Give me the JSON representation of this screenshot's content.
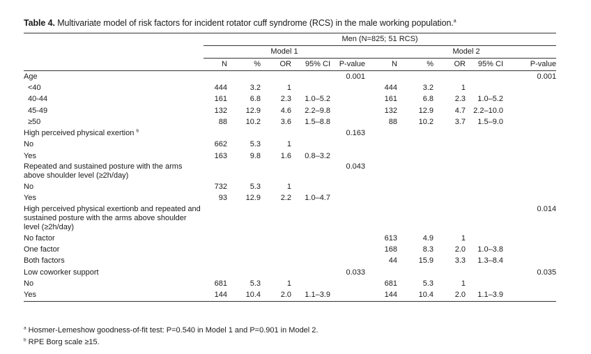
{
  "caption": {
    "label": "Table 4.",
    "text": " Multivariate model of risk factors for incident rotator cuff syndrome (RCS) in the male working population.",
    "marker": "a"
  },
  "header": {
    "group": "Men (N=825; 51 RCS)",
    "model1": "Model 1",
    "model2": "Model 2",
    "columns": [
      "N",
      "%",
      "OR",
      "95% CI",
      "P-value",
      "N",
      "%",
      "OR",
      "95% CI",
      "P-value"
    ]
  },
  "rows": [
    {
      "label": "Age",
      "indent": false,
      "cells": [
        "",
        "",
        "",
        "",
        "0.001",
        "",
        "",
        "",
        "",
        "0.001"
      ]
    },
    {
      "label": "<40",
      "indent": true,
      "cells": [
        "444",
        "3.2",
        "1",
        "",
        "",
        "444",
        "3.2",
        "1",
        "",
        ""
      ]
    },
    {
      "label": "40-44",
      "indent": true,
      "cells": [
        "161",
        "6.8",
        "2.3",
        "1.0–5.2",
        "",
        "161",
        "6.8",
        "2.3",
        "1.0–5.2",
        ""
      ]
    },
    {
      "label": "45-49",
      "indent": true,
      "cells": [
        "132",
        "12.9",
        "4.6",
        "2.2–9.8",
        "",
        "132",
        "12.9",
        "4.7",
        "2.2–10.0",
        ""
      ]
    },
    {
      "label": "≥50",
      "indent": true,
      "cells": [
        "88",
        "10.2",
        "3.6",
        "1.5–8.8",
        "",
        "88",
        "10.2",
        "3.7",
        "1.5–9.0",
        ""
      ]
    },
    {
      "label": "High perceived physical exertion",
      "fn": "b",
      "indent": false,
      "cells": [
        "",
        "",
        "",
        "",
        "0.163",
        "",
        "",
        "",
        "",
        ""
      ]
    },
    {
      "label": "No",
      "indent": false,
      "cells": [
        "662",
        "5.3",
        "1",
        "",
        "",
        "",
        "",
        "",
        "",
        ""
      ]
    },
    {
      "label": "Yes",
      "indent": false,
      "cells": [
        "163",
        "9.8",
        "1.6",
        "0.8–3.2",
        "",
        "",
        "",
        "",
        "",
        ""
      ]
    },
    {
      "label": "Repeated and sustained posture with the arms above shoulder level (≥2h/day)",
      "indent": false,
      "multi": true,
      "cells": [
        "",
        "",
        "",
        "",
        "0.043",
        "",
        "",
        "",
        "",
        ""
      ]
    },
    {
      "label": "No",
      "indent": false,
      "cells": [
        "732",
        "5.3",
        "1",
        "",
        "",
        "",
        "",
        "",
        "",
        ""
      ]
    },
    {
      "label": "Yes",
      "indent": false,
      "cells": [
        "93",
        "12.9",
        "2.2",
        "1.0–4.7",
        "",
        "",
        "",
        "",
        "",
        ""
      ]
    },
    {
      "label": "High perceived physical exertionb and repeated and sustained posture with the arms above shoulder level (≥2h/day)",
      "indent": false,
      "multi": true,
      "cells": [
        "",
        "",
        "",
        "",
        "",
        "",
        "",
        "",
        "",
        "0.014"
      ]
    },
    {
      "label": "No factor",
      "indent": false,
      "cells": [
        "",
        "",
        "",
        "",
        "",
        "613",
        "4.9",
        "1",
        "",
        ""
      ]
    },
    {
      "label": "One factor",
      "indent": false,
      "cells": [
        "",
        "",
        "",
        "",
        "",
        "168",
        "8.3",
        "2.0",
        "1.0–3.8",
        ""
      ]
    },
    {
      "label": "Both factors",
      "indent": false,
      "cells": [
        "",
        "",
        "",
        "",
        "",
        "44",
        "15.9",
        "3.3",
        "1.3–8.4",
        ""
      ]
    },
    {
      "label": "Low coworker support",
      "indent": false,
      "cells": [
        "",
        "",
        "",
        "",
        "0.033",
        "",
        "",
        "",
        "",
        "0.035"
      ]
    },
    {
      "label": "No",
      "indent": false,
      "cells": [
        "681",
        "5.3",
        "1",
        "",
        "",
        "681",
        "5.3",
        "1",
        "",
        ""
      ]
    },
    {
      "label": "Yes",
      "indent": false,
      "cells": [
        "144",
        "10.4",
        "2.0",
        "1.1–3.9",
        "",
        "144",
        "10.4",
        "2.0",
        "1.1–3.9",
        ""
      ]
    }
  ],
  "footnotes": [
    {
      "marker": "a",
      "text": " Hosmer-Lemeshow goodness-of-fit test: P=0.540 in Model 1 and P=0.901 in Model 2."
    },
    {
      "marker": "b",
      "text": " RPE Borg scale ≥15."
    }
  ]
}
